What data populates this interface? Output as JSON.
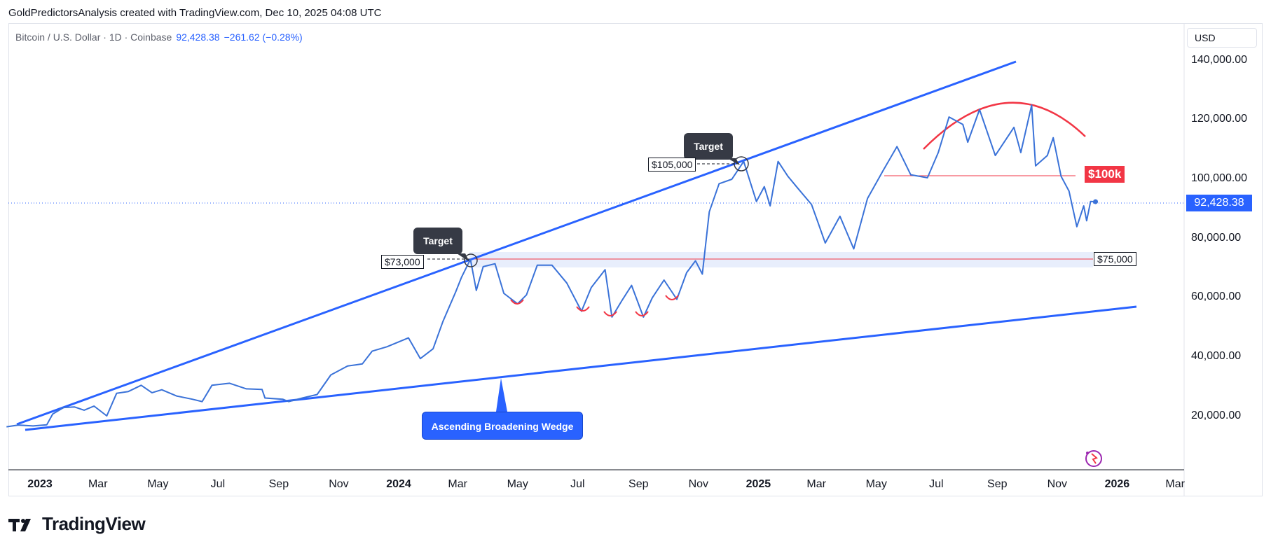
{
  "header": {
    "attribution": "GoldPredictorsAnalysis created with TradingView.com, Dec 10, 2025 04:08 UTC"
  },
  "legend": {
    "symbol": "Bitcoin / U.S. Dollar · 1D · Coinbase",
    "price": "92,428.38",
    "change": "−261.62 (−0.28%)"
  },
  "currency_button": "USD",
  "brand": {
    "name": "TradingView"
  },
  "annotations": {
    "target_1": "Target",
    "target_2": "Target",
    "label_73k": "$73,000",
    "label_105k": "$105,000",
    "label_100k": "$100k",
    "label_75k": "$75,000",
    "wedge_label": "Ascending Broadening Wedge"
  },
  "colors": {
    "price_line": "#3a72d8",
    "wedge": "#2962ff",
    "arc": "#f23645",
    "support": "#f23645",
    "zone": "#e8eefc"
  },
  "chart_data": {
    "type": "line",
    "title": "",
    "xlabel": "",
    "ylabel": "",
    "ylim": [
      0,
      150000
    ],
    "last_price_label": "92,428.38",
    "y_ticks": [
      "140,000.00",
      "120,000.00",
      "100,000.00",
      "80,000.00",
      "60,000.00",
      "40,000.00",
      "20,000.00"
    ],
    "y_tick_values": [
      140000,
      120000,
      100000,
      80000,
      60000,
      40000,
      20000
    ],
    "x_ticks": [
      {
        "label": "2023",
        "date": "2023-01-01",
        "year": true
      },
      {
        "label": "Mar",
        "date": "2023-03-01"
      },
      {
        "label": "May",
        "date": "2023-05-01"
      },
      {
        "label": "Jul",
        "date": "2023-07-01"
      },
      {
        "label": "Sep",
        "date": "2023-09-01"
      },
      {
        "label": "Nov",
        "date": "2023-11-01"
      },
      {
        "label": "2024",
        "date": "2024-01-01",
        "year": true
      },
      {
        "label": "Mar",
        "date": "2024-03-01"
      },
      {
        "label": "May",
        "date": "2024-05-01"
      },
      {
        "label": "Jul",
        "date": "2024-07-01"
      },
      {
        "label": "Sep",
        "date": "2024-09-01"
      },
      {
        "label": "Nov",
        "date": "2024-11-01"
      },
      {
        "label": "2025",
        "date": "2025-01-01",
        "year": true
      },
      {
        "label": "Mar",
        "date": "2025-03-01"
      },
      {
        "label": "May",
        "date": "2025-05-01"
      },
      {
        "label": "Jul",
        "date": "2025-07-01"
      },
      {
        "label": "Sep",
        "date": "2025-09-01"
      },
      {
        "label": "Nov",
        "date": "2025-11-01"
      },
      {
        "label": "2026",
        "date": "2026-01-01",
        "year": true
      },
      {
        "label": "Mar",
        "date": "2026-03-01"
      }
    ],
    "series": [
      {
        "values": [
          [
            "2022-11-28",
            16500
          ],
          [
            "2022-12-10",
            17100
          ],
          [
            "2022-12-25",
            16800
          ],
          [
            "2023-01-08",
            17200
          ],
          [
            "2023-01-14",
            20800
          ],
          [
            "2023-01-25",
            23000
          ],
          [
            "2023-02-05",
            23200
          ],
          [
            "2023-02-15",
            22100
          ],
          [
            "2023-02-25",
            23500
          ],
          [
            "2023-03-10",
            20200
          ],
          [
            "2023-03-20",
            27800
          ],
          [
            "2023-04-01",
            28400
          ],
          [
            "2023-04-14",
            30500
          ],
          [
            "2023-04-25",
            28000
          ],
          [
            "2023-05-05",
            29000
          ],
          [
            "2023-05-20",
            26900
          ],
          [
            "2023-06-05",
            25800
          ],
          [
            "2023-06-15",
            25000
          ],
          [
            "2023-06-25",
            30500
          ],
          [
            "2023-07-13",
            31200
          ],
          [
            "2023-07-30",
            29300
          ],
          [
            "2023-08-15",
            29100
          ],
          [
            "2023-08-18",
            26200
          ],
          [
            "2023-09-05",
            25800
          ],
          [
            "2023-09-11",
            25000
          ],
          [
            "2023-09-25",
            26200
          ],
          [
            "2023-10-10",
            27400
          ],
          [
            "2023-10-24",
            34000
          ],
          [
            "2023-11-10",
            37000
          ],
          [
            "2023-11-25",
            37700
          ],
          [
            "2023-12-05",
            42000
          ],
          [
            "2023-12-20",
            43500
          ],
          [
            "2024-01-11",
            46500
          ],
          [
            "2024-01-23",
            39500
          ],
          [
            "2024-02-05",
            42800
          ],
          [
            "2024-02-15",
            52000
          ],
          [
            "2024-02-28",
            62000
          ],
          [
            "2024-03-05",
            67000
          ],
          [
            "2024-03-14",
            73000
          ],
          [
            "2024-03-20",
            62500
          ],
          [
            "2024-03-27",
            70500
          ],
          [
            "2024-04-08",
            71500
          ],
          [
            "2024-04-17",
            61500
          ],
          [
            "2024-05-01",
            58000
          ],
          [
            "2024-05-10",
            61000
          ],
          [
            "2024-05-21",
            71000
          ],
          [
            "2024-06-05",
            71000
          ],
          [
            "2024-06-20",
            65000
          ],
          [
            "2024-07-05",
            55500
          ],
          [
            "2024-07-15",
            63500
          ],
          [
            "2024-07-29",
            69500
          ],
          [
            "2024-08-05",
            53500
          ],
          [
            "2024-08-15",
            59000
          ],
          [
            "2024-08-25",
            64200
          ],
          [
            "2024-09-06",
            53500
          ],
          [
            "2024-09-15",
            60000
          ],
          [
            "2024-09-27",
            66000
          ],
          [
            "2024-10-10",
            59500
          ],
          [
            "2024-10-20",
            68500
          ],
          [
            "2024-10-29",
            72500
          ],
          [
            "2024-11-05",
            68000
          ],
          [
            "2024-11-12",
            89000
          ],
          [
            "2024-11-22",
            98500
          ],
          [
            "2024-12-05",
            100000
          ],
          [
            "2024-12-17",
            106000
          ],
          [
            "2024-12-30",
            92500
          ],
          [
            "2025-01-07",
            97500
          ],
          [
            "2025-01-13",
            91000
          ],
          [
            "2025-01-21",
            106000
          ],
          [
            "2025-01-31",
            101000
          ],
          [
            "2025-02-10",
            97000
          ],
          [
            "2025-02-24",
            91500
          ],
          [
            "2025-03-02",
            86000
          ],
          [
            "2025-03-10",
            78500
          ],
          [
            "2025-03-25",
            87500
          ],
          [
            "2025-04-08",
            76500
          ],
          [
            "2025-04-22",
            93500
          ],
          [
            "2025-05-08",
            103000
          ],
          [
            "2025-05-22",
            111000
          ],
          [
            "2025-06-05",
            101500
          ],
          [
            "2025-06-22",
            100500
          ],
          [
            "2025-07-03",
            109000
          ],
          [
            "2025-07-14",
            121000
          ],
          [
            "2025-07-28",
            118500
          ],
          [
            "2025-08-02",
            112500
          ],
          [
            "2025-08-14",
            123500
          ],
          [
            "2025-08-30",
            108000
          ],
          [
            "2025-09-18",
            117500
          ],
          [
            "2025-09-25",
            109000
          ],
          [
            "2025-10-06",
            125000
          ],
          [
            "2025-10-10",
            104500
          ],
          [
            "2025-10-22",
            108000
          ],
          [
            "2025-10-28",
            114000
          ],
          [
            "2025-11-05",
            101000
          ],
          [
            "2025-11-13",
            96000
          ],
          [
            "2025-11-21",
            84000
          ],
          [
            "2025-11-28",
            91000
          ],
          [
            "2025-12-01",
            86000
          ],
          [
            "2025-12-05",
            92500
          ],
          [
            "2025-12-10",
            92428
          ]
        ]
      }
    ]
  }
}
